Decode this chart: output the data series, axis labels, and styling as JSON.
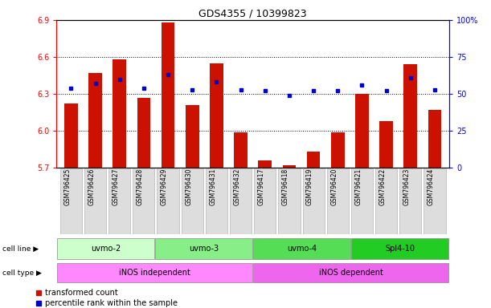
{
  "title": "GDS4355 / 10399823",
  "samples": [
    "GSM796425",
    "GSM796426",
    "GSM796427",
    "GSM796428",
    "GSM796429",
    "GSM796430",
    "GSM796431",
    "GSM796432",
    "GSM796417",
    "GSM796418",
    "GSM796419",
    "GSM796420",
    "GSM796421",
    "GSM796422",
    "GSM796423",
    "GSM796424"
  ],
  "red_values": [
    6.22,
    6.47,
    6.58,
    6.27,
    6.88,
    6.21,
    6.55,
    5.99,
    5.76,
    5.72,
    5.83,
    5.99,
    6.3,
    6.08,
    6.54,
    6.17
  ],
  "blue_values": [
    54,
    57,
    60,
    54,
    63,
    53,
    58,
    53,
    52,
    49,
    52,
    52,
    56,
    52,
    61,
    53
  ],
  "ylim_left": [
    5.7,
    6.9
  ],
  "ylim_right": [
    0,
    100
  ],
  "yticks_left": [
    5.7,
    6.0,
    6.3,
    6.6,
    6.9
  ],
  "yticks_right": [
    0,
    25,
    50,
    75,
    100
  ],
  "ytick_labels_right": [
    "0",
    "25",
    "50",
    "75",
    "100%"
  ],
  "cell_line_groups": [
    {
      "label": "uvmo-2",
      "start": 0,
      "end": 3,
      "color": "#ccffcc"
    },
    {
      "label": "uvmo-3",
      "start": 4,
      "end": 7,
      "color": "#88ee88"
    },
    {
      "label": "uvmo-4",
      "start": 8,
      "end": 11,
      "color": "#55dd55"
    },
    {
      "label": "Spl4-10",
      "start": 12,
      "end": 15,
      "color": "#22cc22"
    }
  ],
  "cell_type_groups": [
    {
      "label": "iNOS independent",
      "start": 0,
      "end": 7,
      "color": "#ff88ff"
    },
    {
      "label": "iNOS dependent",
      "start": 8,
      "end": 15,
      "color": "#ee66ee"
    }
  ],
  "bar_color": "#cc1100",
  "dot_color": "#0000cc",
  "legend_red": "transformed count",
  "legend_blue": "percentile rank within the sample",
  "cell_line_label": "cell line",
  "cell_type_label": "cell type"
}
